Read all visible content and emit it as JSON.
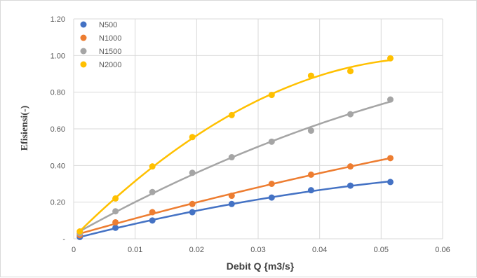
{
  "chart_data": {
    "type": "scatter",
    "title": "",
    "xlabel": "Debit Q {m3/s}",
    "ylabel": "Efisiensi(-)",
    "xlim": [
      0,
      0.06
    ],
    "ylim": [
      0,
      1.2
    ],
    "xticks": [
      0,
      0.01,
      0.02,
      0.03,
      0.04,
      0.05,
      0.06
    ],
    "xtick_labels": [
      "0",
      "0.01",
      "0.02",
      "0.03",
      "0.04",
      "0.05",
      "0.06"
    ],
    "yticks": [
      0,
      0.2,
      0.4,
      0.6,
      0.8,
      1.0,
      1.2
    ],
    "ytick_labels": [
      "-",
      "0.20",
      "0.40",
      "0.60",
      "0.80",
      "1.00",
      "1.20"
    ],
    "grid": true,
    "legend_position": "top-left",
    "trendline": "polynomial",
    "series": [
      {
        "name": "N500",
        "color": "#4472C4",
        "x": [
          0.001,
          0.0068,
          0.0128,
          0.0193,
          0.0257,
          0.0322,
          0.0386,
          0.045,
          0.0515
        ],
        "y": [
          0.01,
          0.06,
          0.1,
          0.145,
          0.19,
          0.225,
          0.265,
          0.29,
          0.31
        ]
      },
      {
        "name": "N1000",
        "color": "#ED7D31",
        "x": [
          0.001,
          0.0068,
          0.0128,
          0.0193,
          0.0257,
          0.0322,
          0.0386,
          0.045,
          0.0515
        ],
        "y": [
          0.02,
          0.09,
          0.145,
          0.19,
          0.235,
          0.3,
          0.35,
          0.395,
          0.44
        ]
      },
      {
        "name": "N1500",
        "color": "#A5A5A5",
        "x": [
          0.001,
          0.0068,
          0.0128,
          0.0193,
          0.0257,
          0.0322,
          0.0386,
          0.045,
          0.0515
        ],
        "y": [
          0.03,
          0.15,
          0.255,
          0.36,
          0.445,
          0.53,
          0.59,
          0.68,
          0.76
        ]
      },
      {
        "name": "N2000",
        "color": "#FFC000",
        "x": [
          0.001,
          0.0068,
          0.0128,
          0.0193,
          0.0257,
          0.0322,
          0.0386,
          0.045,
          0.0515
        ],
        "y": [
          0.04,
          0.22,
          0.395,
          0.555,
          0.675,
          0.785,
          0.89,
          0.915,
          0.985
        ]
      }
    ]
  }
}
